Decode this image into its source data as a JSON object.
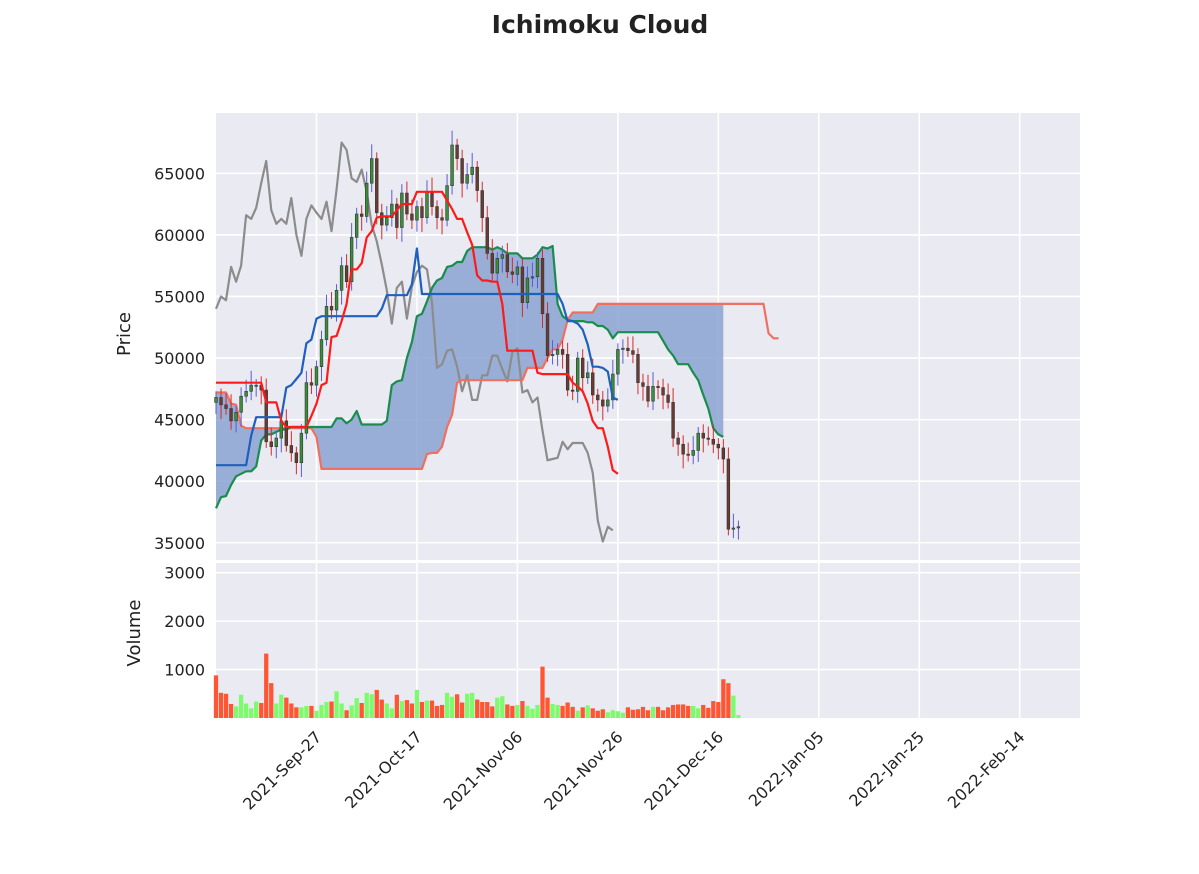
{
  "chart_data": {
    "type": "candlestick-ichimoku",
    "title": "Ichimoku Cloud",
    "colors": {
      "background": "#eaeaf2",
      "grid": "#ffffff",
      "candle_up": "#5b5bd6",
      "candle_down": "#d62a2a",
      "tenkan_sen": "#ff1a1a",
      "kijun_sen": "#1f5fbf",
      "chikou_span": "#8c8c8c",
      "senkou_span_a": "#1a8c4e",
      "senkou_span_b": "#f07060",
      "cloud_fill": "#8aa3d1",
      "volume_up": "#7cfc6a",
      "volume_down": "#ff5533"
    },
    "price_panel": {
      "ylabel": "Price",
      "yticks": [
        35000,
        40000,
        45000,
        50000,
        55000,
        60000,
        65000
      ],
      "ylim": [
        33600,
        69900
      ]
    },
    "volume_panel": {
      "ylabel": "Volume",
      "yticks": [
        1000,
        2000,
        3000
      ],
      "ylim": [
        0,
        3200
      ]
    },
    "x_axis": {
      "start": "2021-09-07",
      "end": "2022-02-26",
      "ticks": [
        "2021-Sep-27",
        "2021-Oct-17",
        "2021-Nov-06",
        "2021-Nov-26",
        "2021-Dec-16",
        "2022-Jan-05",
        "2022-Jan-25",
        "2022-Feb-14"
      ]
    },
    "grid": true,
    "series": {
      "close": {
        "start": "2021-09-07",
        "values": [
          46800,
          46200,
          45900,
          44900,
          45600,
          46900,
          47300,
          47800,
          47800,
          47400,
          43200,
          42800,
          43500,
          44900,
          42900,
          42300,
          41500,
          43900,
          48000,
          47800,
          49300,
          51500,
          54200,
          53900,
          55500,
          57500,
          56200,
          59800,
          61700,
          61500,
          64200,
          66200,
          61800,
          60800,
          61400,
          62500,
          60600,
          63400,
          61700,
          61200,
          62300,
          61400,
          63500,
          62300,
          61400,
          61200,
          64000,
          67300,
          66200,
          64200,
          64900,
          65500,
          63600,
          61400,
          58500,
          56900,
          58100,
          58400,
          57000,
          56800,
          57400,
          54500,
          56500,
          56600,
          58100,
          53600,
          50200,
          50300,
          50700,
          50300,
          47400,
          47300,
          50000,
          48400,
          48800,
          47000,
          46600,
          46100,
          46600,
          48700,
          50700,
          50800,
          50600,
          50300,
          48000,
          47700,
          46500,
          47700,
          47600,
          47000,
          46400,
          43500,
          43000,
          42200,
          42100,
          42500,
          43900,
          43500,
          43400,
          43000,
          42700,
          41800,
          36100,
          36200,
          36300
        ]
      },
      "tenkan_sen": {
        "start": "2021-09-07",
        "values": [
          48000,
          48000,
          48000,
          48000,
          48000,
          48000,
          48000,
          48000,
          48000,
          48000,
          46400,
          46400,
          46400,
          44900,
          44400,
          44400,
          44400,
          44400,
          44400,
          45300,
          46300,
          47800,
          48000,
          51700,
          51800,
          53000,
          54400,
          57200,
          57200,
          57700,
          59800,
          60300,
          61400,
          61500,
          61500,
          61500,
          62000,
          62500,
          62500,
          62500,
          63500,
          63500,
          63500,
          63500,
          63500,
          63500,
          62800,
          62100,
          61300,
          61300,
          60200,
          59200,
          56700,
          56300,
          56300,
          56200,
          56200,
          54400,
          50600,
          50600,
          50600,
          50600,
          50600,
          50600,
          48800,
          48700,
          48700,
          48700,
          48700,
          48700,
          48700,
          48000,
          47700,
          47300,
          46300,
          44900,
          44300,
          44300,
          42800,
          40900,
          40600
        ]
      },
      "kijun_sen": {
        "start": "2021-09-07",
        "values": [
          41300,
          41300,
          41300,
          41300,
          41300,
          41300,
          41300,
          43700,
          45200,
          45200,
          45200,
          45200,
          45200,
          45200,
          47600,
          47800,
          48300,
          48800,
          51200,
          51500,
          53200,
          53400,
          53400,
          53400,
          53400,
          53400,
          53400,
          53400,
          53400,
          53400,
          53400,
          53400,
          53400,
          54000,
          55100,
          55100,
          55100,
          55100,
          55100,
          56000,
          58900,
          55200,
          55200,
          55200,
          55200,
          55200,
          55200,
          55200,
          55200,
          55200,
          55200,
          55200,
          55200,
          55200,
          55200,
          55200,
          55200,
          55200,
          55200,
          55200,
          55200,
          55200,
          55200,
          55200,
          55200,
          55200,
          55200,
          55200,
          55200,
          54400,
          53000,
          53000,
          52800,
          52300,
          51100,
          49300,
          49300,
          49200,
          48900,
          46800,
          46600
        ]
      },
      "chikou_span": {
        "start": "2021-09-07",
        "values": [
          54000,
          55000,
          54700,
          57400,
          56200,
          57500,
          61600,
          61300,
          62200,
          64200,
          66000,
          62000,
          60900,
          61300,
          60900,
          63000,
          60000,
          58300,
          61300,
          62400,
          61800,
          61300,
          62700,
          60300,
          63700,
          67500,
          66900,
          64600,
          64300,
          65300,
          63500,
          60800,
          59500,
          57600,
          55500,
          52800,
          55700,
          56200,
          53200,
          55800,
          57000,
          57500,
          57200,
          54500,
          49200,
          49500,
          50600,
          50700,
          49300,
          47300,
          48600,
          46600,
          46600,
          48600,
          48600,
          50200,
          50200,
          49100,
          48100,
          50500,
          50800,
          47200,
          47400,
          46400,
          46800,
          44100,
          41700,
          41800,
          41900,
          43200,
          42600,
          43100,
          43100,
          43100,
          42300,
          40700,
          36800,
          35100,
          36300,
          36000
        ]
      },
      "senkou_span_a": {
        "start": "2021-09-07",
        "values": [
          37800,
          38700,
          38800,
          39700,
          40400,
          40600,
          40800,
          40800,
          41200,
          43300,
          43800,
          43800,
          44000,
          44200,
          44200,
          44400,
          44400,
          44400,
          44400,
          44400,
          44400,
          44400,
          44400,
          44400,
          45100,
          45100,
          44700,
          45000,
          45700,
          44600,
          44600,
          44600,
          44600,
          44600,
          44900,
          47800,
          48100,
          48200,
          50000,
          51300,
          53400,
          53600,
          54600,
          55700,
          56300,
          56500,
          57400,
          57500,
          57800,
          57800,
          58700,
          59000,
          59000,
          59000,
          59000,
          58800,
          59000,
          58800,
          58500,
          58500,
          58500,
          58100,
          58100,
          58100,
          58400,
          59000,
          58900,
          59100,
          54400,
          53400,
          53100,
          53000,
          53000,
          53000,
          52900,
          52900,
          52600,
          52600,
          52300,
          51600,
          52100,
          52100,
          52100,
          52100,
          52100,
          52100,
          52100,
          52100,
          52100,
          51400,
          50700,
          50200,
          49500,
          49500,
          49500,
          48800,
          48200,
          47000,
          45900,
          44300,
          43800,
          43600
        ]
      },
      "senkou_span_b": {
        "start": "2021-09-07",
        "values": [
          47200,
          47200,
          47200,
          46300,
          46200,
          44500,
          44300,
          44300,
          44300,
          44300,
          44300,
          44300,
          44300,
          44300,
          44300,
          44300,
          44300,
          44300,
          44300,
          44300,
          43600,
          41000,
          41000,
          41000,
          41000,
          41000,
          41000,
          41000,
          41000,
          41000,
          41000,
          41000,
          41000,
          41000,
          41000,
          41000,
          41000,
          41000,
          41000,
          41000,
          41000,
          41000,
          42200,
          42300,
          42300,
          42800,
          44400,
          45400,
          48000,
          48200,
          48200,
          48200,
          48200,
          48200,
          48200,
          48200,
          48200,
          48200,
          48200,
          48200,
          48200,
          48200,
          49200,
          49200,
          49200,
          49200,
          50000,
          50700,
          50700,
          51500,
          53100,
          53700,
          53700,
          53700,
          53700,
          53700,
          54400,
          54400,
          54400,
          54400,
          54400,
          54400,
          54400,
          54400,
          54400,
          54400,
          54400,
          54400,
          54400,
          54400,
          54400,
          54400,
          54400,
          54400,
          54400,
          54400,
          54400,
          54400,
          54400,
          54400,
          54400,
          54400,
          54400,
          54400,
          54400,
          54400,
          54400,
          54400,
          54400,
          54400,
          52000,
          51600,
          51600
        ]
      },
      "volume": {
        "start": "2021-09-07",
        "values": [
          880,
          520,
          500,
          290,
          240,
          480,
          300,
          200,
          340,
          310,
          1330,
          720,
          300,
          480,
          420,
          300,
          220,
          220,
          250,
          250,
          150,
          270,
          330,
          340,
          550,
          300,
          160,
          260,
          410,
          310,
          520,
          490,
          580,
          380,
          300,
          200,
          480,
          350,
          370,
          300,
          580,
          330,
          360,
          360,
          250,
          270,
          520,
          440,
          490,
          320,
          500,
          520,
          380,
          330,
          330,
          240,
          420,
          450,
          280,
          250,
          270,
          350,
          250,
          190,
          270,
          1060,
          420,
          290,
          270,
          250,
          320,
          230,
          150,
          220,
          260,
          200,
          150,
          180,
          120,
          160,
          140,
          110,
          220,
          170,
          180,
          230,
          160,
          230,
          230,
          160,
          220,
          270,
          280,
          280,
          250,
          250,
          200,
          270,
          210,
          350,
          330,
          800,
          720,
          460,
          60
        ]
      }
    }
  }
}
